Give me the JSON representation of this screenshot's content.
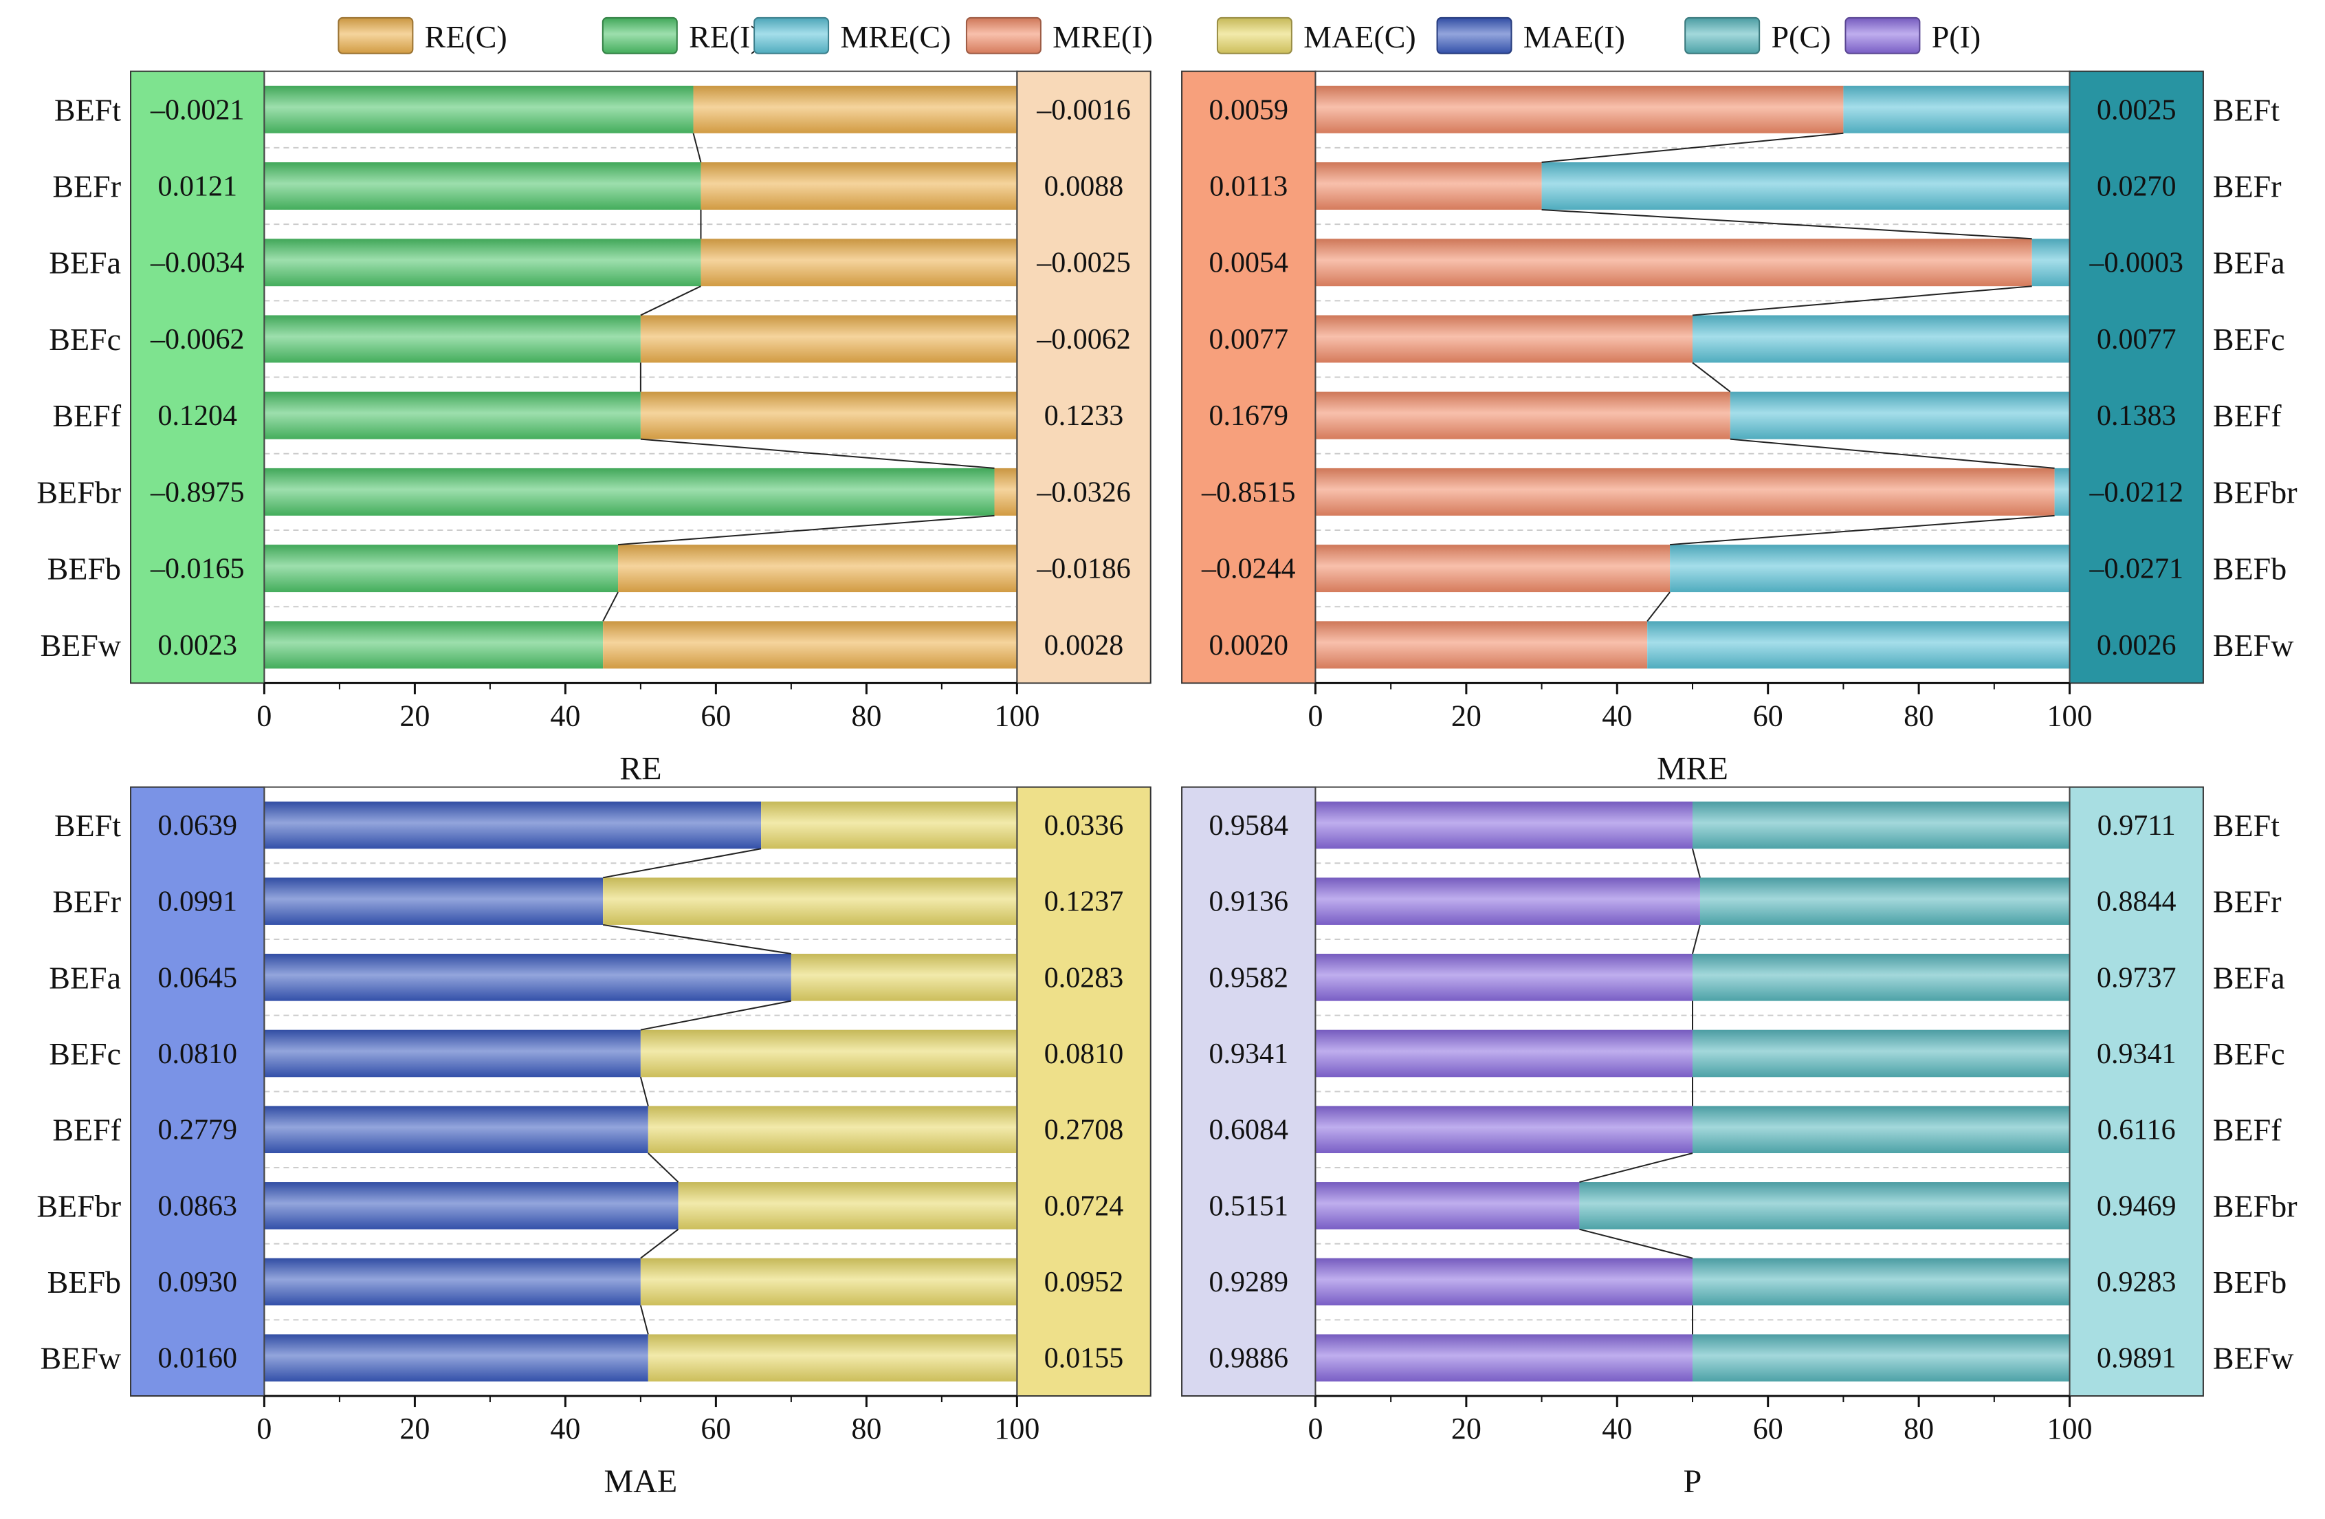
{
  "legend": [
    {
      "label": "RE(C)",
      "color": "#EDB04C"
    },
    {
      "label": "RE(I)",
      "color": "#4DC569"
    },
    {
      "label": "MRE(C)",
      "color": "#5BC3D8"
    },
    {
      "label": "MRE(I)",
      "color": "#F28C68"
    },
    {
      "label": "MAE(C)",
      "color": "#E8D867"
    },
    {
      "label": "MAE(I)",
      "color": "#3A5BC0"
    },
    {
      "label": "P(C)",
      "color": "#58B8BE"
    },
    {
      "label": "P(I)",
      "color": "#8A6BE0"
    }
  ],
  "chart_data": [
    {
      "type": "bar",
      "stacked": true,
      "orientation": "horizontal",
      "title": "RE",
      "xlabel": "RE",
      "xlim": [
        0,
        100
      ],
      "xticks": [
        "0",
        "20",
        "40",
        "60",
        "80",
        "100"
      ],
      "category_side": "left",
      "categories": [
        "BEFt",
        "BEFr",
        "BEFa",
        "BEFc",
        "BEFf",
        "BEFbr",
        "BEFb",
        "BEFw"
      ],
      "series": [
        {
          "name": "RE(I)",
          "values": [
            57,
            58,
            58,
            50,
            50,
            97,
            47,
            45
          ]
        },
        {
          "name": "RE(C)",
          "values": [
            43,
            42,
            42,
            50,
            50,
            3,
            53,
            55
          ]
        }
      ],
      "left_box": {
        "color": "#7EE38F",
        "values": [
          "–0.0021",
          "0.0121",
          "–0.0034",
          "–0.0062",
          "0.1204",
          "–0.8975",
          "–0.0165",
          "0.0023"
        ]
      },
      "right_box": {
        "color": "#F8D9B8",
        "values": [
          "–0.0016",
          "0.0088",
          "–0.0025",
          "–0.0062",
          "0.1233",
          "–0.0326",
          "–0.0186",
          "0.0028"
        ]
      }
    },
    {
      "type": "bar",
      "stacked": true,
      "orientation": "horizontal",
      "title": "MRE",
      "xlabel": "MRE",
      "xlim": [
        0,
        100
      ],
      "xticks": [
        "0",
        "20",
        "40",
        "60",
        "80",
        "100"
      ],
      "category_side": "right",
      "categories": [
        "BEFt",
        "BEFr",
        "BEFa",
        "BEFc",
        "BEFf",
        "BEFbr",
        "BEFb",
        "BEFw"
      ],
      "series": [
        {
          "name": "MRE(I)",
          "values": [
            70,
            30,
            95,
            50,
            55,
            98,
            47,
            44
          ]
        },
        {
          "name": "MRE(C)",
          "values": [
            30,
            70,
            5,
            50,
            45,
            2,
            53,
            56
          ]
        }
      ],
      "left_box": {
        "color": "#F7A07C",
        "values": [
          "0.0059",
          "0.0113",
          "0.0054",
          "0.0077",
          "0.1679",
          "–0.8515",
          "–0.0244",
          "0.0020"
        ]
      },
      "right_box": {
        "color": "#2894A2",
        "values": [
          "0.0025",
          "0.0270",
          "–0.0003",
          "0.0077",
          "0.1383",
          "–0.0212",
          "–0.0271",
          "0.0026"
        ]
      }
    },
    {
      "type": "bar",
      "stacked": true,
      "orientation": "horizontal",
      "title": "MAE",
      "xlabel": "MAE",
      "xlim": [
        0,
        100
      ],
      "xticks": [
        "0",
        "20",
        "40",
        "60",
        "80",
        "100"
      ],
      "category_side": "left",
      "categories": [
        "BEFt",
        "BEFr",
        "BEFa",
        "BEFc",
        "BEFf",
        "BEFbr",
        "BEFb",
        "BEFw"
      ],
      "series": [
        {
          "name": "MAE(I)",
          "values": [
            66,
            45,
            70,
            50,
            51,
            55,
            50,
            51
          ]
        },
        {
          "name": "MAE(C)",
          "values": [
            34,
            55,
            30,
            50,
            49,
            45,
            50,
            49
          ]
        }
      ],
      "left_box": {
        "color": "#7A93E6",
        "values": [
          "0.0639",
          "0.0991",
          "0.0645",
          "0.0810",
          "0.2779",
          "0.0863",
          "0.0930",
          "0.0160"
        ]
      },
      "right_box": {
        "color": "#EEE08A",
        "values": [
          "0.0336",
          "0.1237",
          "0.0283",
          "0.0810",
          "0.2708",
          "0.0724",
          "0.0952",
          "0.0155"
        ]
      }
    },
    {
      "type": "bar",
      "stacked": true,
      "orientation": "horizontal",
      "title": "P",
      "xlabel": "P",
      "xlim": [
        0,
        100
      ],
      "xticks": [
        "0",
        "20",
        "40",
        "60",
        "80",
        "100"
      ],
      "category_side": "right",
      "categories": [
        "BEFt",
        "BEFr",
        "BEFa",
        "BEFc",
        "BEFf",
        "BEFbr",
        "BEFb",
        "BEFw"
      ],
      "series": [
        {
          "name": "P(I)",
          "values": [
            50,
            51,
            50,
            50,
            50,
            35,
            50,
            50
          ]
        },
        {
          "name": "P(C)",
          "values": [
            50,
            49,
            50,
            50,
            50,
            65,
            50,
            50
          ]
        }
      ],
      "left_box": {
        "color": "#D8D8F0",
        "values": [
          "0.9584",
          "0.9136",
          "0.9582",
          "0.9341",
          "0.6084",
          "0.5151",
          "0.9289",
          "0.9886"
        ]
      },
      "right_box": {
        "color": "#A8DEE2",
        "values": [
          "0.9711",
          "0.8844",
          "0.9737",
          "0.9341",
          "0.6116",
          "0.9469",
          "0.9283",
          "0.9891"
        ]
      }
    }
  ]
}
